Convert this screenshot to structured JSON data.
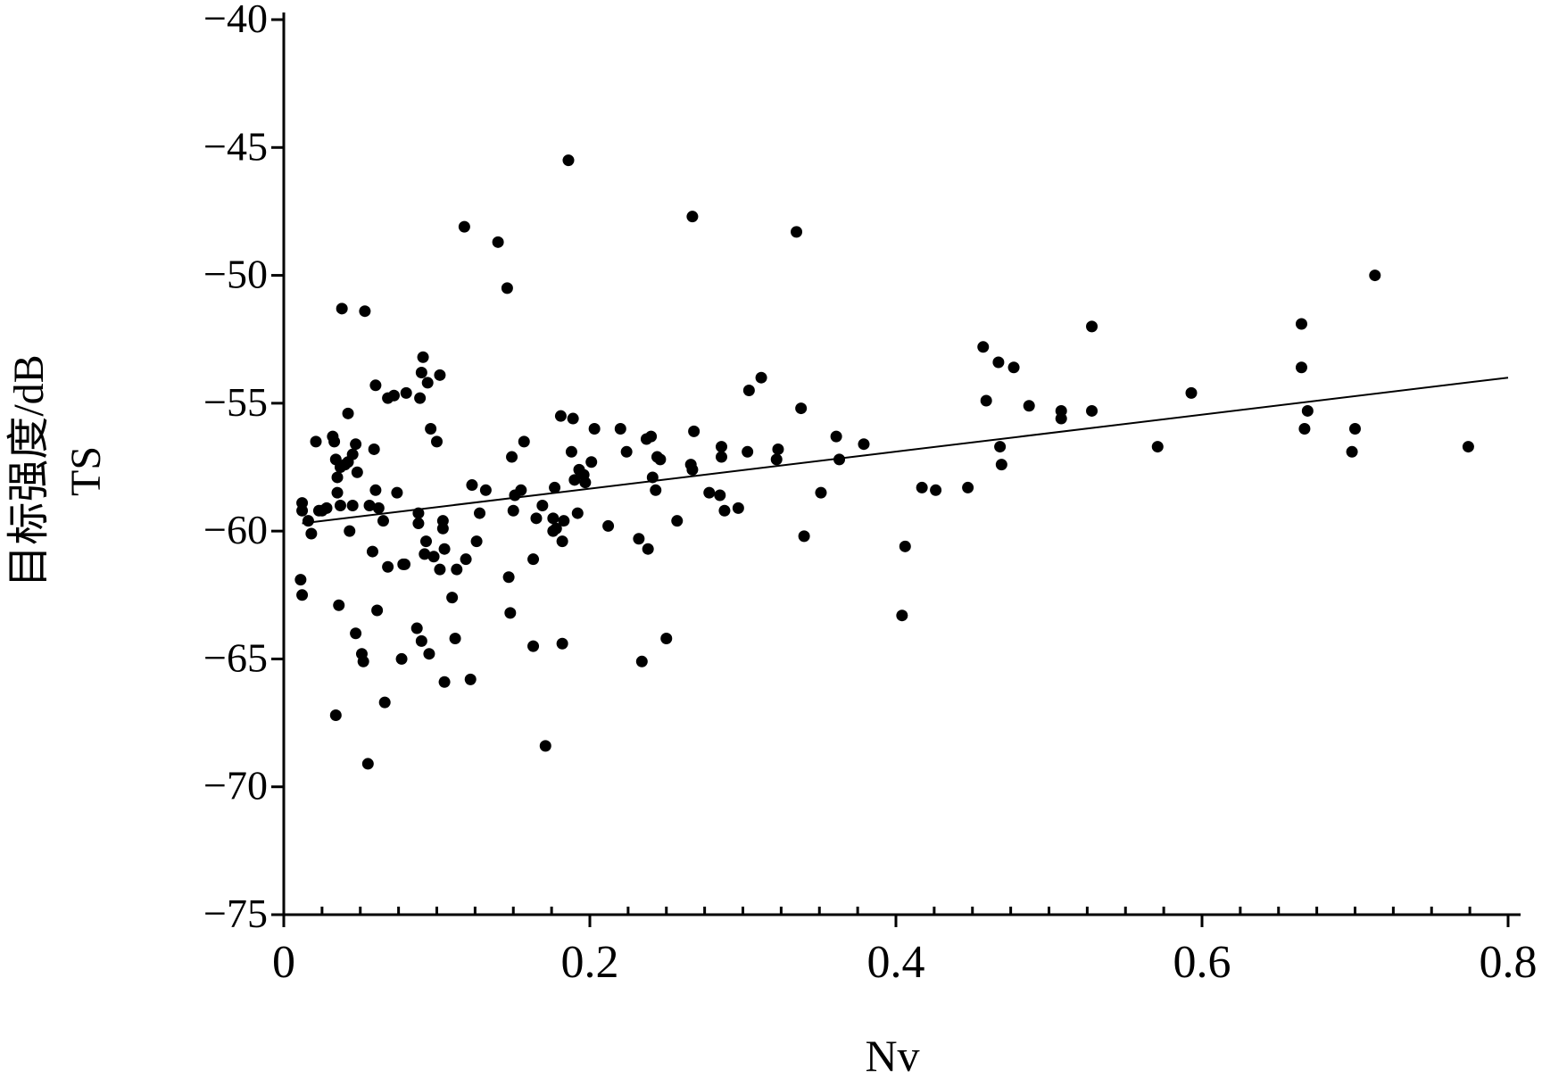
{
  "chart_data": {
    "type": "scatter",
    "title": "",
    "xlabel": "Nv",
    "ylabel": "TS",
    "ylabel2": "目标强度/dB",
    "xlim": [
      0,
      0.8
    ],
    "ylim": [
      -75,
      -40
    ],
    "x_ticks": [
      0,
      0.2,
      0.4,
      0.6,
      0.8
    ],
    "x_tick_labels": [
      "0",
      "0.2",
      "0.4",
      "0.6",
      "0.8"
    ],
    "y_ticks": [
      -40,
      -45,
      -50,
      -55,
      -60,
      -65,
      -70,
      -75
    ],
    "y_tick_labels": [
      "−40",
      "−45",
      "−50",
      "−55",
      "−60",
      "−65",
      "−70",
      "−75"
    ],
    "grid": false,
    "point_color": "#000000",
    "trendline": {
      "x": [
        0.012,
        0.8
      ],
      "y": [
        -59.7,
        -54.0
      ]
    },
    "points": [
      [
        0.011,
        -61.9
      ],
      [
        0.012,
        -62.5
      ],
      [
        0.012,
        -58.9
      ],
      [
        0.012,
        -59.2
      ],
      [
        0.016,
        -59.6
      ],
      [
        0.018,
        -60.1
      ],
      [
        0.021,
        -56.5
      ],
      [
        0.023,
        -59.2
      ],
      [
        0.025,
        -59.2
      ],
      [
        0.028,
        -59.1
      ],
      [
        0.032,
        -56.3
      ],
      [
        0.033,
        -56.5
      ],
      [
        0.034,
        -57.2
      ],
      [
        0.034,
        -67.2
      ],
      [
        0.035,
        -58.5
      ],
      [
        0.035,
        -57.9
      ],
      [
        0.036,
        -62.9
      ],
      [
        0.037,
        -57.5
      ],
      [
        0.037,
        -59.0
      ],
      [
        0.038,
        -51.3
      ],
      [
        0.04,
        -57.4
      ],
      [
        0.042,
        -57.3
      ],
      [
        0.042,
        -55.4
      ],
      [
        0.043,
        -60.0
      ],
      [
        0.045,
        -59.0
      ],
      [
        0.045,
        -57.0
      ],
      [
        0.047,
        -56.6
      ],
      [
        0.047,
        -64.0
      ],
      [
        0.048,
        -57.7
      ],
      [
        0.051,
        -64.8
      ],
      [
        0.052,
        -65.1
      ],
      [
        0.053,
        -51.4
      ],
      [
        0.055,
        -69.1
      ],
      [
        0.056,
        -59.0
      ],
      [
        0.058,
        -60.8
      ],
      [
        0.059,
        -56.8
      ],
      [
        0.06,
        -54.3
      ],
      [
        0.06,
        -58.4
      ],
      [
        0.061,
        -63.1
      ],
      [
        0.062,
        -59.1
      ],
      [
        0.065,
        -59.6
      ],
      [
        0.066,
        -66.7
      ],
      [
        0.068,
        -54.8
      ],
      [
        0.068,
        -61.4
      ],
      [
        0.072,
        -54.7
      ],
      [
        0.074,
        -58.5
      ],
      [
        0.077,
        -65.0
      ],
      [
        0.078,
        -61.3
      ],
      [
        0.079,
        -61.3
      ],
      [
        0.08,
        -54.6
      ],
      [
        0.087,
        -63.8
      ],
      [
        0.088,
        -59.3
      ],
      [
        0.088,
        -59.7
      ],
      [
        0.089,
        -54.8
      ],
      [
        0.09,
        -53.8
      ],
      [
        0.09,
        -64.3
      ],
      [
        0.091,
        -53.2
      ],
      [
        0.092,
        -60.9
      ],
      [
        0.093,
        -60.4
      ],
      [
        0.094,
        -54.2
      ],
      [
        0.095,
        -64.8
      ],
      [
        0.096,
        -56.0
      ],
      [
        0.098,
        -61.0
      ],
      [
        0.1,
        -56.5
      ],
      [
        0.102,
        -53.9
      ],
      [
        0.102,
        -61.5
      ],
      [
        0.104,
        -59.9
      ],
      [
        0.104,
        -59.6
      ],
      [
        0.105,
        -60.7
      ],
      [
        0.105,
        -65.9
      ],
      [
        0.11,
        -62.6
      ],
      [
        0.112,
        -64.2
      ],
      [
        0.113,
        -61.5
      ],
      [
        0.118,
        -48.1
      ],
      [
        0.119,
        -61.1
      ],
      [
        0.122,
        -65.8
      ],
      [
        0.123,
        -58.2
      ],
      [
        0.126,
        -60.4
      ],
      [
        0.128,
        -59.3
      ],
      [
        0.132,
        -58.4
      ],
      [
        0.14,
        -48.7
      ],
      [
        0.146,
        -50.5
      ],
      [
        0.147,
        -61.8
      ],
      [
        0.148,
        -63.2
      ],
      [
        0.149,
        -57.1
      ],
      [
        0.15,
        -59.2
      ],
      [
        0.151,
        -58.6
      ],
      [
        0.155,
        -58.4
      ],
      [
        0.157,
        -56.5
      ],
      [
        0.163,
        -64.5
      ],
      [
        0.163,
        -61.1
      ],
      [
        0.165,
        -59.5
      ],
      [
        0.169,
        -59.0
      ],
      [
        0.171,
        -68.4
      ],
      [
        0.176,
        -60.0
      ],
      [
        0.176,
        -59.5
      ],
      [
        0.177,
        -58.3
      ],
      [
        0.178,
        -59.9
      ],
      [
        0.181,
        -55.5
      ],
      [
        0.182,
        -64.4
      ],
      [
        0.182,
        -60.4
      ],
      [
        0.183,
        -59.6
      ],
      [
        0.186,
        -45.5
      ],
      [
        0.188,
        -56.9
      ],
      [
        0.189,
        -55.6
      ],
      [
        0.19,
        -58.0
      ],
      [
        0.192,
        -59.3
      ],
      [
        0.193,
        -57.6
      ],
      [
        0.196,
        -57.8
      ],
      [
        0.197,
        -58.1
      ],
      [
        0.201,
        -57.3
      ],
      [
        0.203,
        -56.0
      ],
      [
        0.212,
        -59.8
      ],
      [
        0.22,
        -56.0
      ],
      [
        0.224,
        -56.9
      ],
      [
        0.232,
        -60.3
      ],
      [
        0.234,
        -65.1
      ],
      [
        0.237,
        -56.4
      ],
      [
        0.238,
        -60.7
      ],
      [
        0.24,
        -56.3
      ],
      [
        0.241,
        -57.9
      ],
      [
        0.243,
        -58.4
      ],
      [
        0.244,
        -57.1
      ],
      [
        0.246,
        -57.2
      ],
      [
        0.25,
        -64.2
      ],
      [
        0.257,
        -59.6
      ],
      [
        0.266,
        -57.4
      ],
      [
        0.267,
        -57.6
      ],
      [
        0.267,
        -47.7
      ],
      [
        0.268,
        -56.1
      ],
      [
        0.278,
        -58.5
      ],
      [
        0.285,
        -58.6
      ],
      [
        0.286,
        -57.1
      ],
      [
        0.286,
        -56.7
      ],
      [
        0.288,
        -59.2
      ],
      [
        0.297,
        -59.1
      ],
      [
        0.303,
        -56.9
      ],
      [
        0.304,
        -54.5
      ],
      [
        0.312,
        -54.0
      ],
      [
        0.322,
        -57.2
      ],
      [
        0.323,
        -56.8
      ],
      [
        0.335,
        -48.3
      ],
      [
        0.338,
        -55.2
      ],
      [
        0.34,
        -60.2
      ],
      [
        0.351,
        -58.5
      ],
      [
        0.361,
        -56.3
      ],
      [
        0.363,
        -57.2
      ],
      [
        0.379,
        -56.6
      ],
      [
        0.404,
        -63.3
      ],
      [
        0.406,
        -60.6
      ],
      [
        0.417,
        -58.3
      ],
      [
        0.426,
        -58.4
      ],
      [
        0.447,
        -58.3
      ],
      [
        0.457,
        -52.8
      ],
      [
        0.459,
        -54.9
      ],
      [
        0.467,
        -53.4
      ],
      [
        0.468,
        -56.7
      ],
      [
        0.469,
        -57.4
      ],
      [
        0.477,
        -53.6
      ],
      [
        0.487,
        -55.1
      ],
      [
        0.508,
        -55.6
      ],
      [
        0.508,
        -55.3
      ],
      [
        0.528,
        -52.0
      ],
      [
        0.528,
        -55.3
      ],
      [
        0.571,
        -56.7
      ],
      [
        0.593,
        -54.6
      ],
      [
        0.665,
        -51.9
      ],
      [
        0.665,
        -53.6
      ],
      [
        0.667,
        -56.0
      ],
      [
        0.669,
        -55.3
      ],
      [
        0.698,
        -56.9
      ],
      [
        0.7,
        -56.0
      ],
      [
        0.713,
        -50.0
      ],
      [
        0.774,
        -56.7
      ]
    ]
  }
}
